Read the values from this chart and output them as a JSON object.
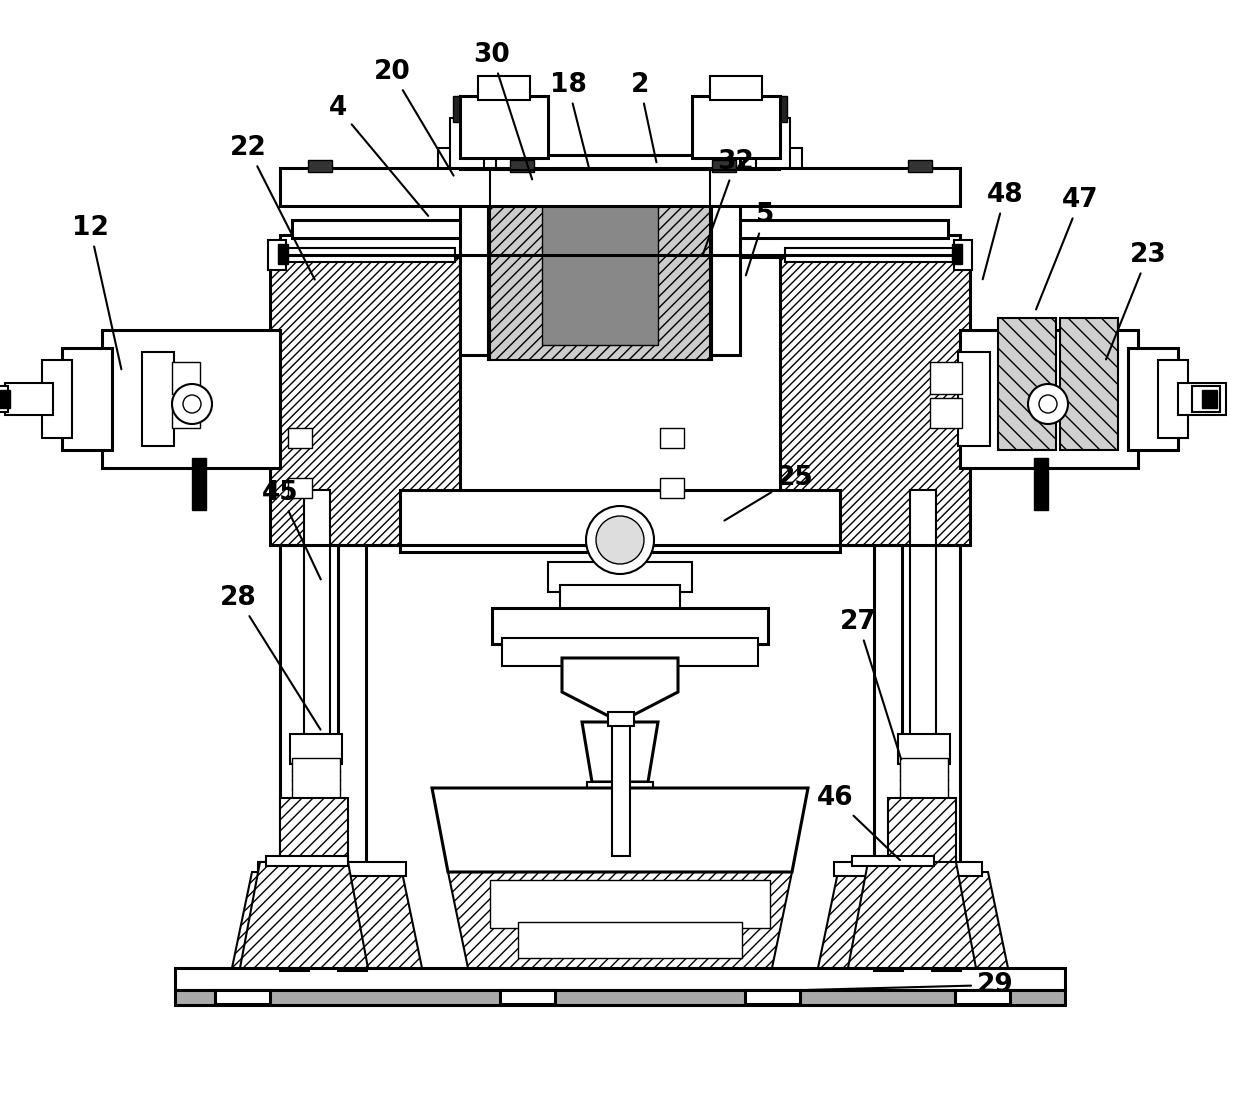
{
  "bg_color": "#ffffff",
  "line_color": "#000000",
  "lw_main": 2.2,
  "lw_med": 1.5,
  "lw_thin": 1.0,
  "label_fontsize": 19,
  "figsize": [
    12.4,
    10.98
  ],
  "dpi": 100,
  "annotations": [
    [
      "2",
      640,
      85,
      657,
      165
    ],
    [
      "4",
      338,
      108,
      430,
      218
    ],
    [
      "5",
      765,
      215,
      745,
      278
    ],
    [
      "12",
      90,
      228,
      122,
      372
    ],
    [
      "18",
      568,
      85,
      590,
      172
    ],
    [
      "20",
      392,
      72,
      455,
      178
    ],
    [
      "22",
      248,
      148,
      316,
      282
    ],
    [
      "23",
      1148,
      255,
      1105,
      362
    ],
    [
      "25",
      795,
      478,
      722,
      522
    ],
    [
      "27",
      858,
      622,
      902,
      762
    ],
    [
      "28",
      238,
      598,
      322,
      732
    ],
    [
      "29",
      995,
      985,
      805,
      990
    ],
    [
      "30",
      492,
      55,
      533,
      182
    ],
    [
      "32",
      736,
      162,
      702,
      257
    ],
    [
      "45",
      280,
      493,
      322,
      582
    ],
    [
      "46",
      835,
      798,
      902,
      862
    ],
    [
      "47",
      1080,
      200,
      1035,
      312
    ],
    [
      "48",
      1005,
      195,
      982,
      282
    ]
  ]
}
